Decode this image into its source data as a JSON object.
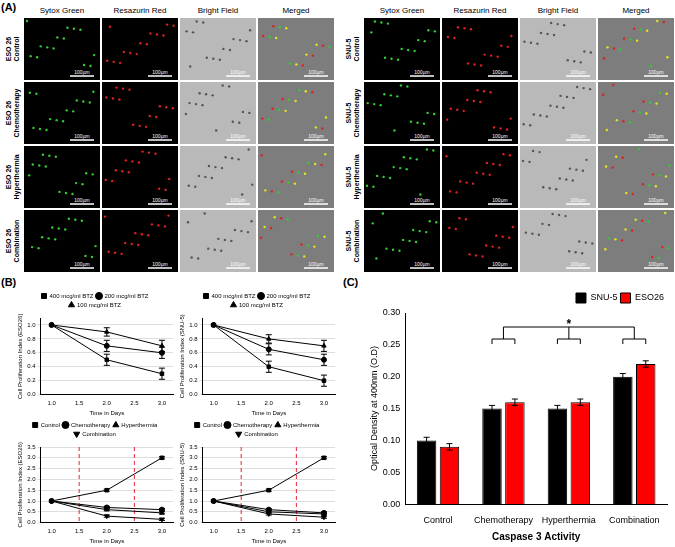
{
  "panel_labels": {
    "a": "(A)",
    "b": "(B)",
    "c": "(C)"
  },
  "panel_a": {
    "columns": [
      "Sytox Green",
      "Resazurin Red",
      "Bright Field",
      "Merged"
    ],
    "scale_bar": "100µm",
    "groups": [
      {
        "cell_line": "ESO 26",
        "conditions": [
          "Control",
          "Chemotherapy",
          "Hyperthermia",
          "Combination"
        ]
      },
      {
        "cell_line": "SNU-5",
        "conditions": [
          "Control",
          "Chemotherapy",
          "Hyperthermia",
          "Combination"
        ]
      }
    ]
  },
  "chart_data": [
    {
      "type": "line",
      "x_label": "Time in Days",
      "y_label": "Cell Proliferation Index (ESO26)",
      "x": [
        1,
        2,
        3
      ],
      "xlim": [
        0.8,
        3.2
      ],
      "xticks": [
        {
          "value": 1,
          "label": "1.0"
        },
        {
          "value": 1.5,
          "label": "1.5"
        },
        {
          "value": 2,
          "label": "2.0"
        },
        {
          "value": 2.5,
          "label": "2.5"
        },
        {
          "value": 3,
          "label": "3.0"
        }
      ],
      "ylim": [
        0,
        1.1
      ],
      "yticks": [
        {
          "value": 0,
          "label": "0.0"
        },
        {
          "value": 0.2,
          "label": "0.2"
        },
        {
          "value": 0.4,
          "label": "0.4"
        },
        {
          "value": 0.6,
          "label": "0.6"
        },
        {
          "value": 0.8,
          "label": "0.8"
        },
        {
          "value": 1,
          "label": "1.0"
        }
      ],
      "grid": true,
      "legend": "top",
      "series": [
        {
          "name": "400 mcg/ml BTZ",
          "color": "#000000",
          "marker": "square",
          "values": [
            1.0,
            0.5,
            0.3
          ],
          "errors": [
            0,
            0.08,
            0.08
          ]
        },
        {
          "name": "200 mcg/ml BTZ",
          "color": "#000000",
          "marker": "circle",
          "values": [
            1.0,
            0.7,
            0.6
          ],
          "errors": [
            0,
            0.08,
            0.08
          ]
        },
        {
          "name": "100 mcg/ml BTZ",
          "color": "#000000",
          "marker": "triangle",
          "values": [
            1.0,
            0.9,
            0.7
          ],
          "errors": [
            0,
            0.06,
            0.08
          ]
        }
      ]
    },
    {
      "type": "line",
      "x_label": "Time in Days",
      "y_label": "Cell Proliferation Index (SNU-5)",
      "x": [
        1,
        2,
        3
      ],
      "xlim": [
        0.8,
        3.2
      ],
      "xticks": [
        {
          "value": 1,
          "label": "1.0"
        },
        {
          "value": 1.5,
          "label": "1.5"
        },
        {
          "value": 2,
          "label": "2.0"
        },
        {
          "value": 2.5,
          "label": "2.5"
        },
        {
          "value": 3,
          "label": "3.0"
        }
      ],
      "ylim": [
        0,
        1.1
      ],
      "yticks": [
        {
          "value": 0,
          "label": "0.0"
        },
        {
          "value": 0.2,
          "label": "0.2"
        },
        {
          "value": 0.4,
          "label": "0.4"
        },
        {
          "value": 0.6,
          "label": "0.6"
        },
        {
          "value": 0.8,
          "label": "0.8"
        },
        {
          "value": 1,
          "label": "1.0"
        }
      ],
      "grid": true,
      "legend": "top",
      "series": [
        {
          "name": "400 mcg/ml BTZ",
          "color": "#000000",
          "marker": "square",
          "values": [
            1.0,
            0.4,
            0.2
          ],
          "errors": [
            0,
            0.08,
            0.08
          ]
        },
        {
          "name": "200 mcg/ml BTZ",
          "color": "#000000",
          "marker": "circle",
          "values": [
            1.0,
            0.65,
            0.5
          ],
          "errors": [
            0,
            0.08,
            0.08
          ]
        },
        {
          "name": "100 mcg/ml BTZ",
          "color": "#000000",
          "marker": "triangle",
          "values": [
            1.0,
            0.8,
            0.7
          ],
          "errors": [
            0,
            0.06,
            0.08
          ]
        }
      ]
    },
    {
      "type": "line",
      "x_label": "Time in Days",
      "y_label": "Cell Proliferation Index (ESO26)",
      "x": [
        1,
        2,
        3
      ],
      "xlim": [
        0.8,
        3.2
      ],
      "xticks": [
        {
          "value": 1,
          "label": "1.0"
        },
        {
          "value": 1.5,
          "label": "1.5"
        },
        {
          "value": 2,
          "label": "2.0"
        },
        {
          "value": 2.5,
          "label": "2.5"
        },
        {
          "value": 3,
          "label": "3.0"
        }
      ],
      "ylim": [
        0,
        3.5
      ],
      "yticks": [
        {
          "value": 0,
          "label": "0.0"
        },
        {
          "value": 0.5,
          "label": "0.5"
        },
        {
          "value": 1,
          "label": "1.0"
        },
        {
          "value": 1.5,
          "label": "1.5"
        },
        {
          "value": 2,
          "label": "2.0"
        },
        {
          "value": 2.5,
          "label": "2.5"
        },
        {
          "value": 3,
          "label": "3.0"
        },
        {
          "value": 3.5,
          "label": "3.5"
        }
      ],
      "grid": true,
      "legend": "top",
      "vlines": {
        "x": [
          1.5,
          2.5
        ],
        "color": "#e8262a",
        "line_style": "dashed"
      },
      "series": [
        {
          "name": "Control",
          "color": "#000000",
          "marker": "square",
          "values": [
            1.0,
            1.5,
            3.0
          ],
          "errors": [
            0,
            0.05,
            0.05
          ]
        },
        {
          "name": "Chemotherapy",
          "color": "#000000",
          "marker": "circle",
          "values": [
            1.0,
            0.7,
            0.6
          ],
          "errors": [
            0,
            0.05,
            0.05
          ]
        },
        {
          "name": "Hyperthermia",
          "color": "#000000",
          "marker": "triangle",
          "values": [
            1.0,
            0.6,
            0.45
          ],
          "errors": [
            0,
            0.05,
            0.05
          ]
        },
        {
          "name": "Combination",
          "color": "#000000",
          "marker": "triangle_down",
          "values": [
            1.0,
            0.3,
            0.15
          ],
          "errors": [
            0,
            0.05,
            0.05
          ]
        }
      ]
    },
    {
      "type": "line",
      "x_label": "Time in Days",
      "y_label": "Cell Proliferation Index (SNU-5)",
      "x": [
        1,
        2,
        3
      ],
      "xlim": [
        0.8,
        3.2
      ],
      "xticks": [
        {
          "value": 1,
          "label": "1.0"
        },
        {
          "value": 1.5,
          "label": "1.5"
        },
        {
          "value": 2,
          "label": "2.0"
        },
        {
          "value": 2.5,
          "label": "2.5"
        },
        {
          "value": 3,
          "label": "3.0"
        }
      ],
      "ylim": [
        0,
        3.5
      ],
      "yticks": [
        {
          "value": 0,
          "label": "0.0"
        },
        {
          "value": 0.5,
          "label": "0.5"
        },
        {
          "value": 1,
          "label": "1.0"
        },
        {
          "value": 1.5,
          "label": "1.5"
        },
        {
          "value": 2,
          "label": "2.0"
        },
        {
          "value": 2.5,
          "label": "2.5"
        },
        {
          "value": 3,
          "label": "3.0"
        },
        {
          "value": 3.5,
          "label": "3.5"
        }
      ],
      "grid": true,
      "legend": "top",
      "vlines": {
        "x": [
          1.5,
          2.5
        ],
        "color": "#e8262a",
        "line_style": "dashed"
      },
      "series": [
        {
          "name": "Control",
          "color": "#000000",
          "marker": "square",
          "values": [
            1.0,
            1.5,
            3.0
          ],
          "errors": [
            0,
            0.05,
            0.05
          ]
        },
        {
          "name": "Chemotherapy",
          "color": "#000000",
          "marker": "circle",
          "values": [
            1.0,
            0.6,
            0.45
          ],
          "errors": [
            0,
            0.05,
            0.05
          ]
        },
        {
          "name": "Hyperthermia",
          "color": "#000000",
          "marker": "triangle",
          "values": [
            1.0,
            0.5,
            0.4
          ],
          "errors": [
            0,
            0.05,
            0.05
          ]
        },
        {
          "name": "Combination",
          "color": "#000000",
          "marker": "triangle_down",
          "values": [
            1.0,
            0.4,
            0.25
          ],
          "errors": [
            0,
            0.05,
            0.05
          ]
        }
      ]
    },
    {
      "type": "bar",
      "x_label": "Caspase 3 Activity",
      "y_label": "Optical Density at 400nm (O.D)",
      "categories": [
        "Control",
        "Chemotherapy",
        "Hyperthermia",
        "Combination"
      ],
      "ylim": [
        0,
        0.3
      ],
      "yticks": [
        {
          "value": 0,
          "label": "0.00"
        },
        {
          "value": 0.05,
          "label": "0.05"
        },
        {
          "value": 0.1,
          "label": "0.10"
        },
        {
          "value": 0.15,
          "label": "0.15"
        },
        {
          "value": 0.2,
          "label": "0.20"
        },
        {
          "value": 0.25,
          "label": "0.25"
        },
        {
          "value": 0.3,
          "label": "0.30"
        }
      ],
      "grid": false,
      "legend": "top right",
      "annotations": [
        "*"
      ],
      "series": [
        {
          "name": "SNU-5",
          "color": "#000000",
          "values": [
            0.1,
            0.15,
            0.15,
            0.2
          ],
          "errors": [
            0.005,
            0.005,
            0.005,
            0.005
          ]
        },
        {
          "name": "ESO26",
          "color": "#ff0000",
          "values": [
            0.09,
            0.16,
            0.16,
            0.22
          ],
          "errors": [
            0.005,
            0.005,
            0.005,
            0.005
          ]
        }
      ]
    }
  ]
}
